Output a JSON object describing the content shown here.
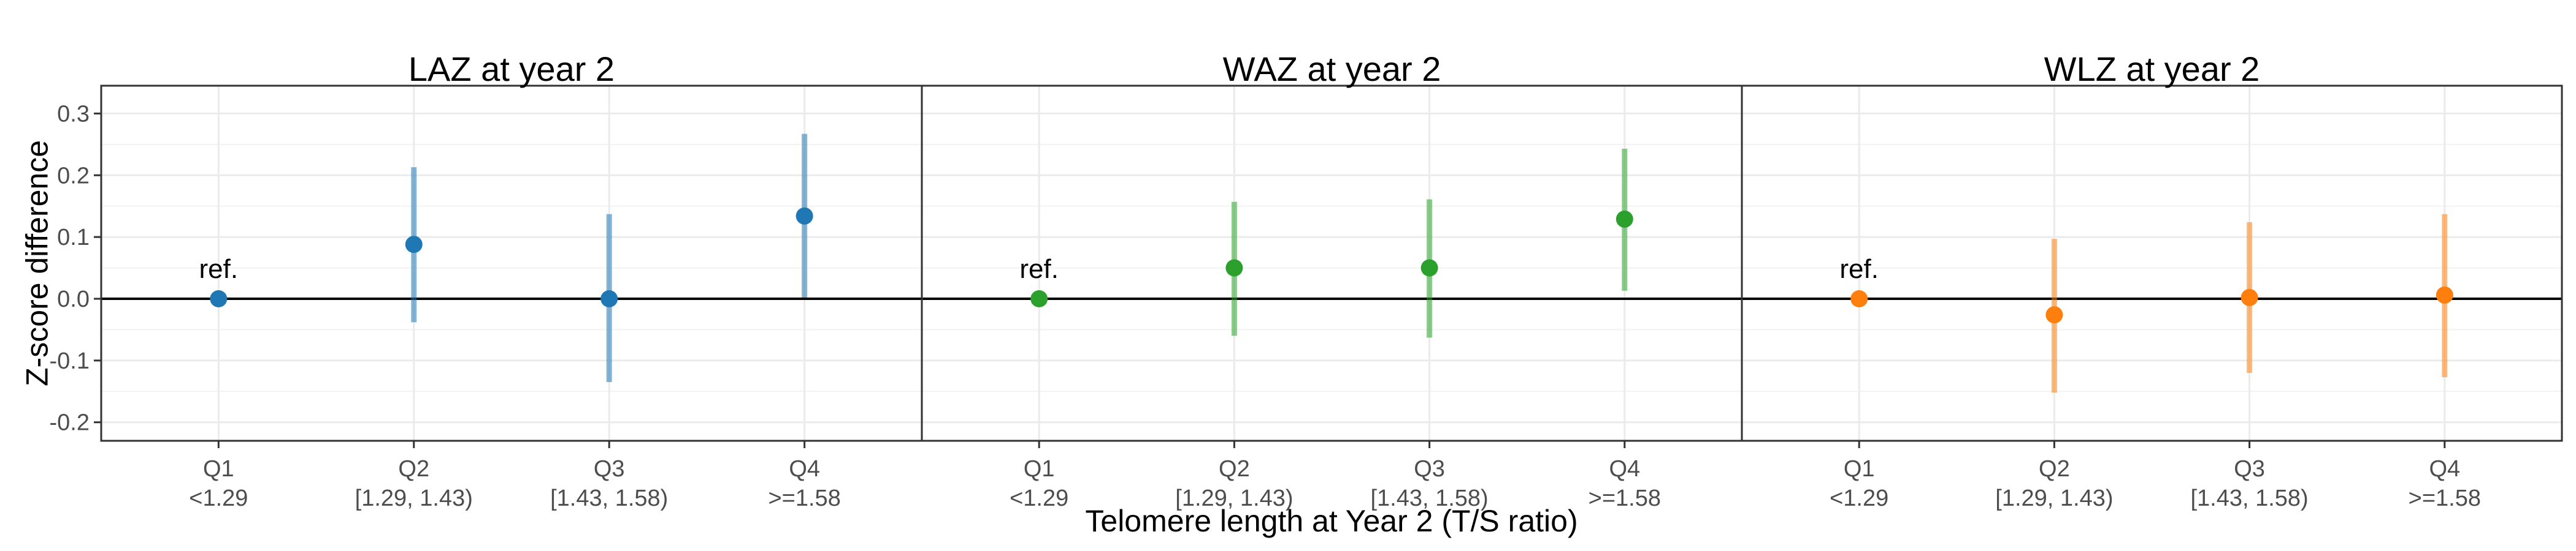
{
  "chart_data": {
    "type": "scatter",
    "title": "",
    "xlabel": "Telomere length at Year 2 (T/S ratio)",
    "ylabel": "Z-score difference",
    "ylim": [
      -0.23,
      0.345
    ],
    "y_ticks": [
      -0.2,
      -0.1,
      0.0,
      0.1,
      0.2,
      0.3
    ],
    "y_tick_labels": [
      "-0.2",
      "-0.1",
      "0.0",
      "0.1",
      "0.2",
      "0.3"
    ],
    "grid": true,
    "reference_line": 0,
    "ref_label": "ref.",
    "categories": [
      {
        "code": "Q1",
        "range": "<1.29"
      },
      {
        "code": "Q2",
        "range": "[1.29, 1.43)"
      },
      {
        "code": "Q3",
        "range": "[1.43, 1.58)"
      },
      {
        "code": "Q4",
        "range": ">=1.58"
      }
    ],
    "panels": [
      {
        "title": "LAZ at year 2",
        "color": "#1f77b4",
        "points": [
          {
            "y": 0.0,
            "low": null,
            "high": null,
            "is_ref": true
          },
          {
            "y": 0.088,
            "low": -0.038,
            "high": 0.213
          },
          {
            "y": 0.0,
            "low": -0.135,
            "high": 0.137
          },
          {
            "y": 0.134,
            "low": 0.002,
            "high": 0.267
          }
        ]
      },
      {
        "title": "WAZ at year 2",
        "color": "#2ca02c",
        "points": [
          {
            "y": 0.0,
            "low": null,
            "high": null,
            "is_ref": true
          },
          {
            "y": 0.05,
            "low": -0.06,
            "high": 0.157
          },
          {
            "y": 0.05,
            "low": -0.063,
            "high": 0.161
          },
          {
            "y": 0.129,
            "low": 0.013,
            "high": 0.243
          }
        ]
      },
      {
        "title": "WLZ at year 2",
        "color": "#ff7f0e",
        "points": [
          {
            "y": 0.0,
            "low": null,
            "high": null,
            "is_ref": true
          },
          {
            "y": -0.026,
            "low": -0.152,
            "high": 0.097
          },
          {
            "y": 0.002,
            "low": -0.12,
            "high": 0.124
          },
          {
            "y": 0.006,
            "low": -0.127,
            "high": 0.137
          }
        ]
      }
    ]
  }
}
